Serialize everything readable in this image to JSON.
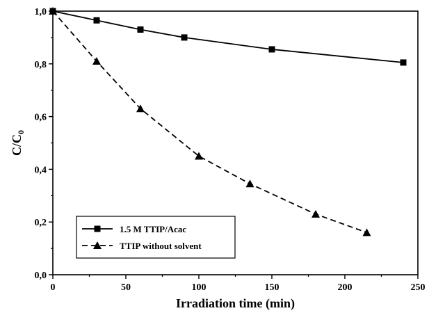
{
  "chart_data": {
    "type": "line",
    "xlabel": "Irradiation time (min)",
    "ylabel": {
      "main": "C/C",
      "subscript": "0"
    },
    "xlim": [
      0,
      250
    ],
    "ylim": [
      0.0,
      1.0
    ],
    "xticks": [
      0,
      50,
      100,
      150,
      200,
      250
    ],
    "yticks": [
      0.0,
      0.2,
      0.4,
      0.6,
      0.8,
      1.0
    ],
    "xtick_labels": [
      "0",
      "50",
      "100",
      "150",
      "200",
      "250"
    ],
    "ytick_labels": [
      "0,0",
      "0,2",
      "0,4",
      "0,6",
      "0,8",
      "1,0"
    ],
    "grid": false,
    "legend_position": "bottom-left",
    "series": [
      {
        "name": "1.5 M TTIP/Acac",
        "marker": "square",
        "line_style": "solid",
        "color": "#000000",
        "x": [
          0,
          30,
          60,
          90,
          150,
          240
        ],
        "y": [
          1.0,
          0.965,
          0.93,
          0.9,
          0.855,
          0.805
        ]
      },
      {
        "name": "TTIP without solvent",
        "marker": "triangle",
        "line_style": "dashed",
        "color": "#000000",
        "x": [
          0,
          30,
          60,
          100,
          135,
          180,
          215
        ],
        "y": [
          1.0,
          0.81,
          0.63,
          0.45,
          0.345,
          0.23,
          0.16
        ]
      }
    ]
  }
}
